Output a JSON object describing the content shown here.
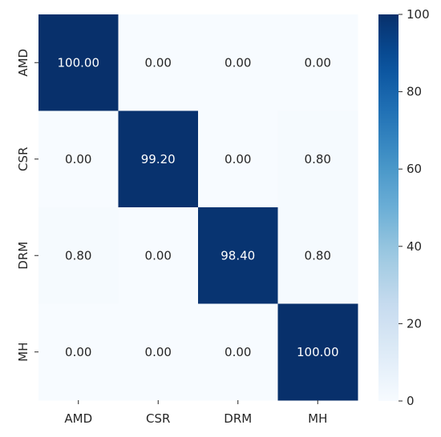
{
  "chart_data": {
    "type": "heatmap",
    "title": "",
    "xlabel": "",
    "ylabel": "",
    "x_categories": [
      "AMD",
      "CSR",
      "DRM",
      "MH"
    ],
    "y_categories": [
      "AMD",
      "CSR",
      "DRM",
      "MH"
    ],
    "values": [
      [
        100.0,
        0.0,
        0.0,
        0.0
      ],
      [
        0.0,
        99.2,
        0.0,
        0.8
      ],
      [
        0.8,
        0.0,
        98.4,
        0.8
      ],
      [
        0.0,
        0.0,
        0.0,
        100.0
      ]
    ],
    "cell_labels": [
      [
        "100.00",
        "0.00",
        "0.00",
        "0.00"
      ],
      [
        "0.00",
        "99.20",
        "0.00",
        "0.80"
      ],
      [
        "0.80",
        "0.00",
        "98.40",
        "0.80"
      ],
      [
        "0.00",
        "0.00",
        "0.00",
        "100.00"
      ]
    ],
    "colormap": "Blues",
    "color_low": "#f7fbff",
    "color_high": "#08306b",
    "vmin": 0,
    "vmax": 100,
    "colorbar": {
      "ticks": [
        0,
        20,
        40,
        60,
        80,
        100
      ],
      "tick_labels": [
        "0",
        "20",
        "40",
        "60",
        "80",
        "100"
      ]
    }
  }
}
